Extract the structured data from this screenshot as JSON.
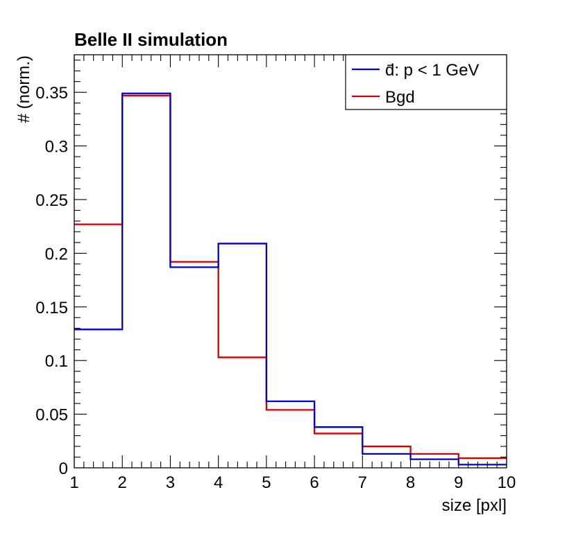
{
  "chart_data": {
    "type": "histogram",
    "title": "Belle II simulation",
    "xlabel": "size [pxl]",
    "ylabel": "# (norm.)",
    "xlim": [
      1,
      10
    ],
    "ylim": [
      0,
      0.385
    ],
    "bin_edges": [
      1,
      2,
      3,
      4,
      5,
      6,
      7,
      8,
      9,
      10
    ],
    "x_tick_labels": [
      "1",
      "2",
      "3",
      "4",
      "5",
      "6",
      "7",
      "8",
      "9",
      "10"
    ],
    "y_ticks": [
      0,
      0.05,
      0.1,
      0.15,
      0.2,
      0.25,
      0.3,
      0.35
    ],
    "y_tick_labels": [
      "0",
      "0.05",
      "0.1",
      "0.15",
      "0.2",
      "0.25",
      "0.3",
      "0.35"
    ],
    "legend_position": "top-right",
    "series": [
      {
        "name": "d̄: p < 1 GeV",
        "color": "#0000cc",
        "values": [
          0.129,
          0.349,
          0.187,
          0.209,
          0.062,
          0.038,
          0.013,
          0.008,
          0.003
        ]
      },
      {
        "name": "Bgd",
        "color": "#d40000",
        "values": [
          0.227,
          0.347,
          0.192,
          0.103,
          0.054,
          0.032,
          0.02,
          0.013,
          0.009
        ]
      }
    ]
  }
}
